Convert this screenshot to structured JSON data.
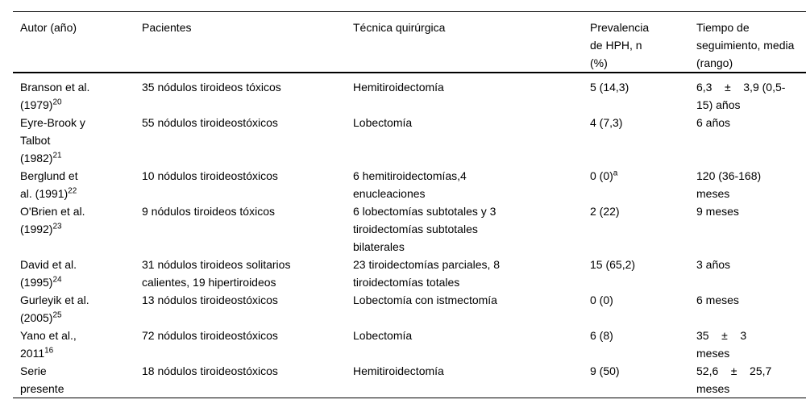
{
  "colors": {
    "background": "#ffffff",
    "text": "#000000",
    "rule": "#000000"
  },
  "table": {
    "columns": [
      {
        "key": "author",
        "label": "Autor (año)"
      },
      {
        "key": "patients",
        "label": "Pacientes"
      },
      {
        "key": "technique",
        "label": "Técnica quirúrgica"
      },
      {
        "key": "prevalence",
        "label": "Prevalencia\nde HPH, n\n(%)"
      },
      {
        "key": "followup",
        "label": "Tiempo de\nseguimiento, media\n(rango)"
      }
    ],
    "rows": [
      {
        "author": "Branson et al.\n(1979)",
        "author_sup": "20",
        "patients": "35 nódulos tiroideos tóxicos",
        "technique": "Hemitiroidectomía",
        "prevalence": "5 (14,3)",
        "followup": "6,3    ±    3,9 (0,5-\n15) años"
      },
      {
        "author": "Eyre-Brook y\nTalbot\n(1982)",
        "author_sup": "21",
        "patients": "55 nódulos tiroideostóxicos",
        "technique": "Lobectomía",
        "prevalence": "4 (7,3)",
        "followup": "6 años"
      },
      {
        "author": "Berglund et\nal. (1991)",
        "author_sup": "22",
        "patients": "10 nódulos tiroideostóxicos",
        "technique": "6 hemitiroidectomías,4\nenucleaciones",
        "prevalence": "0 (0)",
        "prevalence_sup": "a",
        "followup": "120 (36-168)\nmeses"
      },
      {
        "author": "O'Brien et al.\n(1992)",
        "author_sup": "23",
        "patients": "9 nódulos tiroideos tóxicos",
        "technique": "6 lobectomías subtotales y 3\ntiroidectomías subtotales\nbilaterales",
        "prevalence": "2 (22)",
        "followup": "9 meses"
      },
      {
        "author": "David et al.\n(1995)",
        "author_sup": "24",
        "patients": "31 nódulos tiroideos solitarios\ncalientes, 19 hipertiroideos",
        "technique": "23 tiroidectomías parciales, 8\ntiroidectomías totales",
        "prevalence": "15 (65,2)",
        "followup": "3 años"
      },
      {
        "author": "Gurleyik et al.\n(2005)",
        "author_sup": "25",
        "patients": "13 nódulos tiroideostóxicos",
        "technique": "Lobectomía con istmectomía",
        "prevalence": "0 (0)",
        "followup": "6 meses"
      },
      {
        "author": "Yano et al.,\n2011",
        "author_sup": "16",
        "patients": "72 nódulos tiroideostóxicos",
        "technique": "Lobectomía",
        "prevalence": "6 (8)",
        "followup": "35    ±    3\nmeses"
      },
      {
        "author": "Serie\npresente",
        "patients": "18 nódulos tiroideostóxicos",
        "technique": "Hemitiroidectomía",
        "prevalence": "9 (50)",
        "followup": "52,6    ±    25,7\nmeses"
      }
    ]
  }
}
